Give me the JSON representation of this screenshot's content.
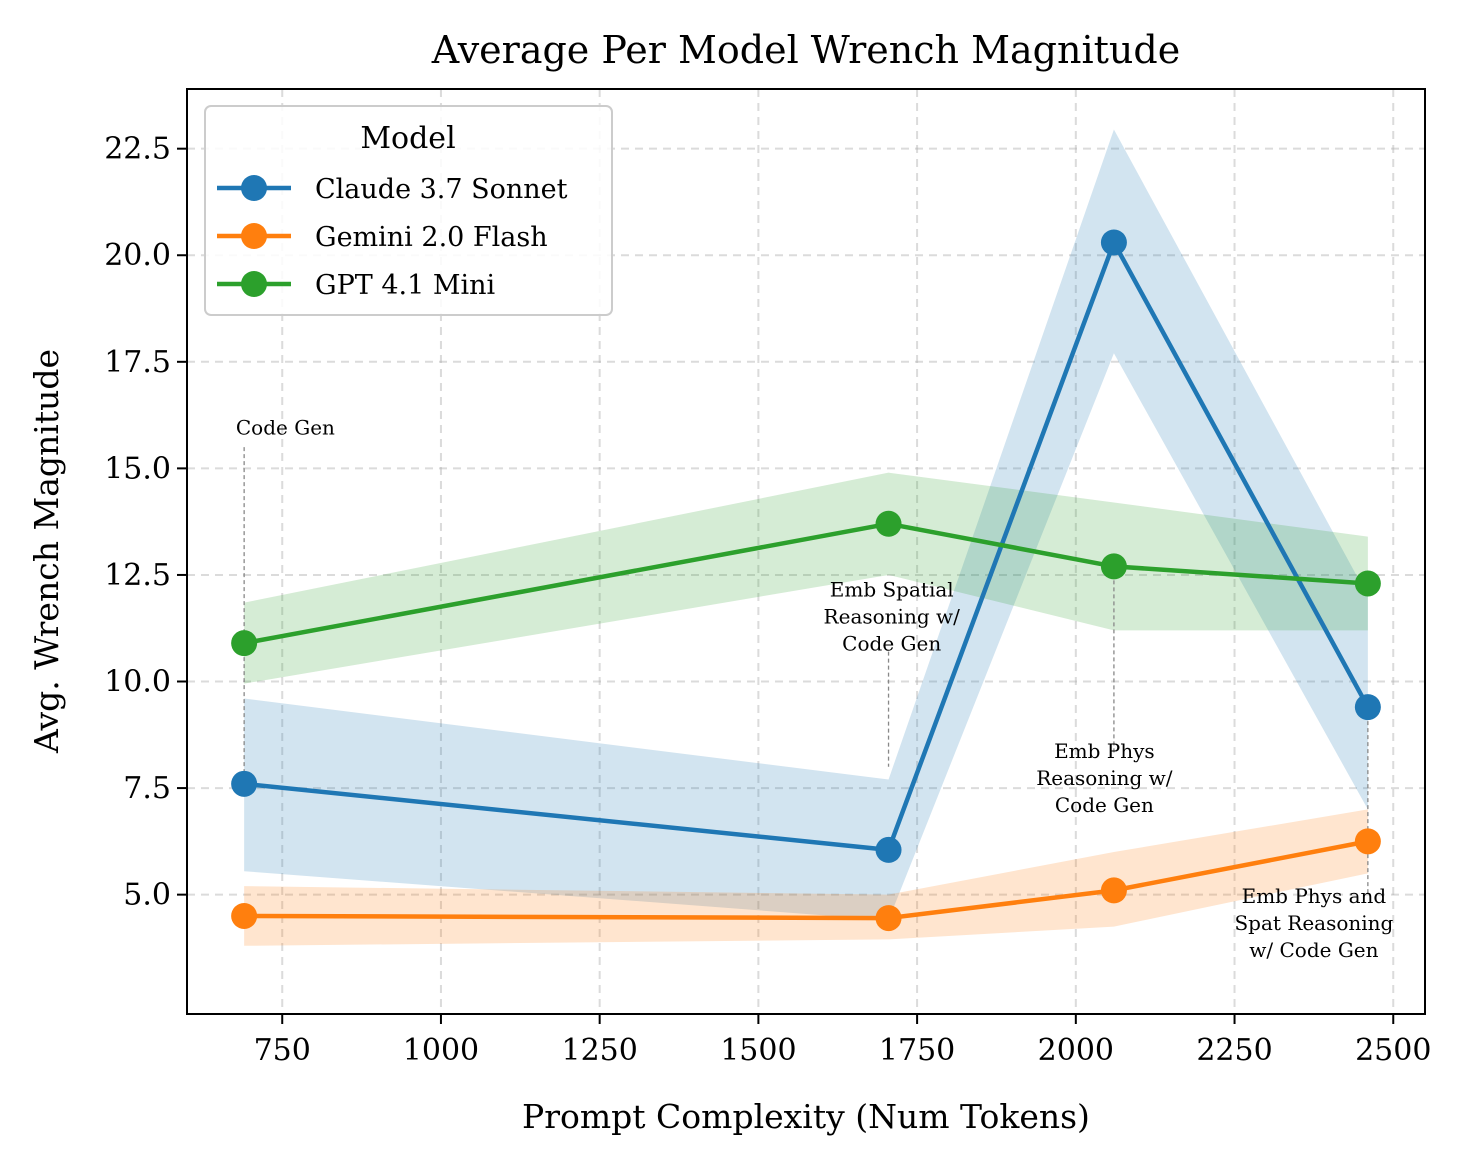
{
  "chart_data": {
    "type": "line",
    "title": "Average Per Model Wrench Magnitude",
    "xlabel": "Prompt Complexity (Num Tokens)",
    "ylabel": "Avg. Wrench Magnitude",
    "xlim": [
      600,
      2550
    ],
    "ylim": [
      2.2,
      23.9
    ],
    "xticks": [
      750,
      1000,
      1250,
      1500,
      1750,
      2000,
      2250,
      2500
    ],
    "xtick_labels": [
      "750",
      "1000",
      "1250",
      "1500",
      "1750",
      "2000",
      "2250",
      "2500"
    ],
    "yticks": [
      5.0,
      7.5,
      10.0,
      12.5,
      15.0,
      17.5,
      20.0,
      22.5
    ],
    "ytick_labels": [
      "5.0",
      "7.5",
      "10.0",
      "12.5",
      "15.0",
      "17.5",
      "20.0",
      "22.5"
    ],
    "grid": true,
    "legend": {
      "title": "Model",
      "position": "upper-left"
    },
    "x": [
      690,
      1705,
      2060,
      2460
    ],
    "series": [
      {
        "name": "Claude 3.7 Sonnet",
        "color": "#1f77b4",
        "values": [
          7.6,
          6.05,
          20.3,
          9.4
        ],
        "lower": [
          5.55,
          4.4,
          17.7,
          7.0
        ],
        "upper": [
          9.6,
          7.7,
          22.95,
          12.0
        ]
      },
      {
        "name": "Gemini 2.0 Flash",
        "color": "#ff7f0e",
        "values": [
          4.5,
          4.45,
          5.1,
          6.25
        ],
        "lower": [
          3.8,
          3.95,
          4.25,
          5.5
        ],
        "upper": [
          5.2,
          5.0,
          6.0,
          7.0
        ]
      },
      {
        "name": "GPT 4.1 Mini",
        "color": "#2ca02c",
        "values": [
          10.9,
          13.7,
          12.7,
          12.3
        ],
        "lower": [
          9.95,
          12.5,
          11.2,
          11.2
        ],
        "upper": [
          11.85,
          14.9,
          14.2,
          13.4
        ]
      }
    ],
    "annotations": [
      {
        "lines": [
          "Code Gen"
        ],
        "x": 690,
        "text_y": 15.8,
        "line_top": 15.5,
        "line_bottom": 7.6,
        "text_x": 755
      },
      {
        "lines": [
          "Emb Spatial",
          "Reasoning w/",
          "Code Gen"
        ],
        "x": 1705,
        "text_y": 12.0,
        "line_top": 10.7,
        "line_bottom": 8.0,
        "text_x": 1710
      },
      {
        "lines": [
          "Emb Phys",
          "Reasoning w/",
          "Code Gen"
        ],
        "x": 2060,
        "text_y": 8.2,
        "line_top": 12.7,
        "line_bottom": 8.3,
        "text_x": 2045
      },
      {
        "lines": [
          "Emb Phys and",
          "Spat Reasoning",
          "w/ Code Gen"
        ],
        "x": 2460,
        "text_y": 4.8,
        "line_top": 9.4,
        "line_bottom": 5.0,
        "text_x": 2375
      }
    ]
  }
}
